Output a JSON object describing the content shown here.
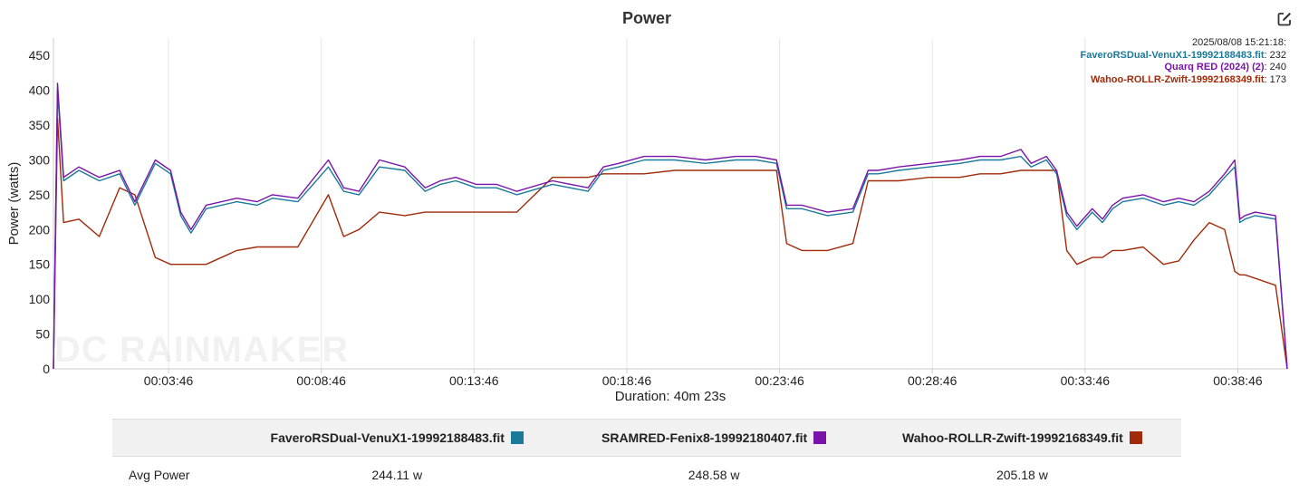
{
  "title": "Power",
  "tooltip": {
    "timestamp": "2025/08/08 15:21:18:",
    "rows": [
      {
        "name": "FaveroRSDual-VenuX1-19992188483.fit",
        "value": "232",
        "color": "#1b7a9a"
      },
      {
        "name": "Quarq RED (2024) (2)",
        "value": "240",
        "color": "#7a14a8"
      },
      {
        "name": "Wahoo-ROLLR-Zwift-19992168349.fit",
        "value": "173",
        "color": "#a12a0a"
      }
    ]
  },
  "watermark": "DC RAINMAKER",
  "table": {
    "headers": [
      "",
      "FaveroRSDual-VenuX1-19992188483.fit",
      "SRAMRED-Fenix8-19992180407.fit",
      "Wahoo-ROLLR-Zwift-19992168349.fit"
    ],
    "swatch_colors": [
      "#1b7a9a",
      "#7a14a8",
      "#a12a0a"
    ],
    "rows": [
      {
        "label": "Avg Power",
        "values": [
          "244.11 w",
          "248.58 w",
          "205.18 w"
        ]
      }
    ]
  },
  "chart_data": {
    "type": "line",
    "title": "Power",
    "ylabel": "Power (watts)",
    "xlabel": "Duration: 40m 23s",
    "ylim": [
      0,
      475
    ],
    "yticks": [
      0,
      50,
      100,
      150,
      200,
      250,
      300,
      350,
      400,
      450
    ],
    "xlim_seconds": [
      0,
      2423
    ],
    "xtick_labels": [
      "00:03:46",
      "00:08:46",
      "00:13:46",
      "00:18:46",
      "00:23:46",
      "00:28:46",
      "00:33:46",
      "00:38:46"
    ],
    "xtick_seconds": [
      226,
      526,
      826,
      1126,
      1426,
      1726,
      2026,
      2326
    ],
    "grid": "vertical",
    "legend": "top-right",
    "series": [
      {
        "name": "FaveroRSDual-VenuX1-19992188483.fit",
        "color": "#1b7a9a",
        "x": [
          0,
          8,
          20,
          50,
          90,
          130,
          160,
          200,
          230,
          250,
          270,
          300,
          360,
          400,
          430,
          480,
          540,
          570,
          600,
          640,
          690,
          730,
          760,
          790,
          830,
          870,
          910,
          980,
          1050,
          1080,
          1110,
          1160,
          1220,
          1280,
          1340,
          1380,
          1420,
          1440,
          1470,
          1520,
          1570,
          1600,
          1620,
          1660,
          1720,
          1780,
          1820,
          1860,
          1900,
          1920,
          1950,
          1970,
          1990,
          2010,
          2040,
          2060,
          2080,
          2100,
          2140,
          2180,
          2210,
          2240,
          2270,
          2300,
          2320,
          2330,
          2340,
          2360,
          2400,
          2423
        ],
        "y": [
          0,
          400,
          270,
          285,
          270,
          280,
          235,
          295,
          280,
          220,
          195,
          230,
          240,
          235,
          245,
          240,
          290,
          255,
          250,
          290,
          285,
          255,
          265,
          270,
          260,
          260,
          250,
          265,
          255,
          285,
          290,
          300,
          300,
          295,
          300,
          300,
          295,
          230,
          230,
          220,
          225,
          280,
          280,
          285,
          290,
          295,
          300,
          300,
          305,
          290,
          300,
          280,
          220,
          200,
          225,
          210,
          230,
          240,
          245,
          235,
          240,
          235,
          250,
          275,
          290,
          210,
          215,
          220,
          215,
          0
        ]
      },
      {
        "name": "SRAMRED-Fenix8-19992180407.fit",
        "color": "#7a14a8",
        "x": [
          0,
          8,
          20,
          50,
          90,
          130,
          160,
          200,
          230,
          250,
          270,
          300,
          360,
          400,
          430,
          480,
          540,
          570,
          600,
          640,
          690,
          730,
          760,
          790,
          830,
          870,
          910,
          980,
          1050,
          1080,
          1110,
          1160,
          1220,
          1280,
          1340,
          1380,
          1420,
          1440,
          1470,
          1520,
          1570,
          1600,
          1620,
          1660,
          1720,
          1780,
          1820,
          1860,
          1900,
          1920,
          1950,
          1970,
          1990,
          2010,
          2040,
          2060,
          2080,
          2100,
          2140,
          2180,
          2210,
          2240,
          2270,
          2300,
          2320,
          2330,
          2340,
          2360,
          2400,
          2423
        ],
        "y": [
          0,
          410,
          275,
          290,
          275,
          285,
          240,
          300,
          285,
          225,
          200,
          235,
          245,
          240,
          250,
          245,
          300,
          260,
          255,
          300,
          290,
          260,
          270,
          275,
          265,
          265,
          255,
          270,
          260,
          290,
          295,
          305,
          305,
          300,
          305,
          305,
          300,
          235,
          235,
          225,
          230,
          285,
          285,
          290,
          295,
          300,
          305,
          305,
          315,
          295,
          305,
          285,
          225,
          205,
          230,
          215,
          235,
          245,
          250,
          240,
          245,
          240,
          255,
          280,
          300,
          215,
          220,
          225,
          220,
          0
        ]
      },
      {
        "name": "Wahoo-ROLLR-Zwift-19992168349.fit",
        "color": "#a12a0a",
        "x": [
          0,
          8,
          20,
          50,
          90,
          130,
          160,
          200,
          230,
          250,
          270,
          300,
          360,
          400,
          430,
          480,
          540,
          570,
          600,
          640,
          690,
          730,
          760,
          790,
          830,
          870,
          910,
          980,
          1050,
          1080,
          1110,
          1160,
          1220,
          1280,
          1340,
          1380,
          1420,
          1440,
          1470,
          1520,
          1570,
          1600,
          1620,
          1660,
          1720,
          1780,
          1820,
          1860,
          1900,
          1920,
          1950,
          1970,
          1990,
          2010,
          2040,
          2060,
          2080,
          2100,
          2140,
          2180,
          2210,
          2240,
          2270,
          2300,
          2320,
          2330,
          2340,
          2360,
          2400,
          2423
        ],
        "y": [
          0,
          360,
          210,
          215,
          190,
          260,
          250,
          160,
          150,
          150,
          150,
          150,
          170,
          175,
          175,
          175,
          250,
          190,
          200,
          225,
          220,
          225,
          225,
          225,
          225,
          225,
          225,
          275,
          275,
          280,
          280,
          280,
          285,
          285,
          285,
          285,
          285,
          180,
          170,
          170,
          180,
          270,
          270,
          270,
          275,
          275,
          280,
          280,
          285,
          285,
          285,
          285,
          170,
          150,
          160,
          160,
          170,
          170,
          175,
          150,
          155,
          185,
          210,
          200,
          140,
          135,
          135,
          130,
          120,
          0
        ]
      }
    ]
  }
}
